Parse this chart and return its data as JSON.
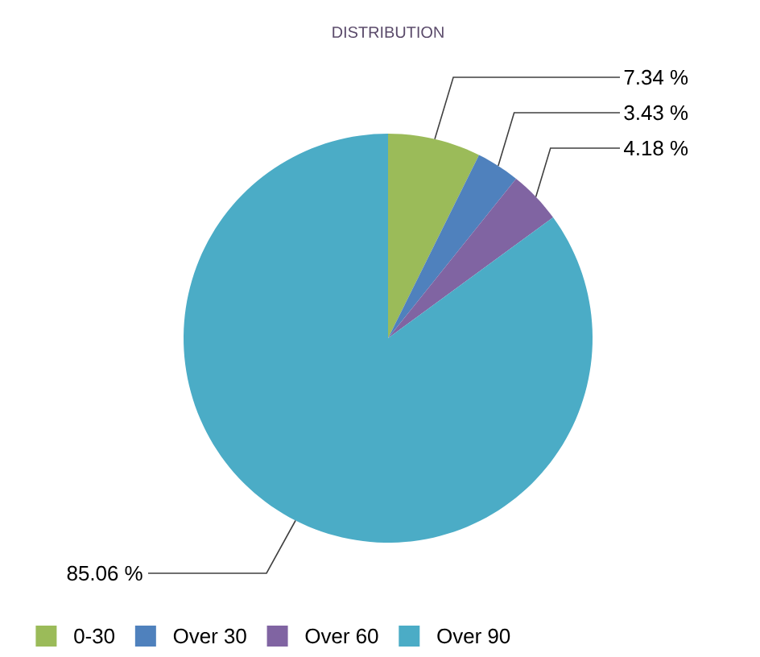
{
  "chart_data": {
    "type": "pie",
    "title": "DISTRIBUTION",
    "categories": [
      "0-30",
      "Over 30",
      "Over 60",
      "Over 90"
    ],
    "values": [
      7.34,
      3.43,
      4.18,
      85.06
    ],
    "value_labels": [
      "7.34 %",
      "3.43 %",
      "4.18 %",
      "85.06 %"
    ],
    "colors": [
      "#9bbb59",
      "#4f81bd",
      "#8064a2",
      "#4bacc6"
    ],
    "legend": "bottom"
  }
}
